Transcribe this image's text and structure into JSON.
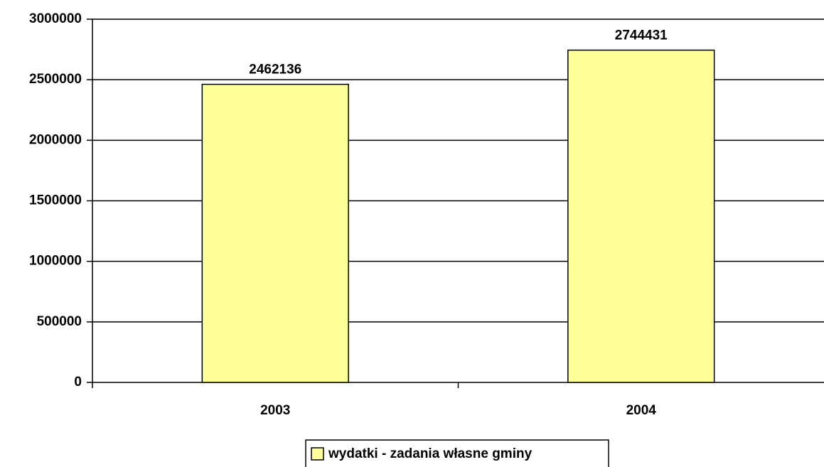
{
  "chart_data": {
    "type": "bar",
    "categories": [
      "2003",
      "2004"
    ],
    "series": [
      {
        "name": "wydatki - zadania własne gminy",
        "color": "#ffff99",
        "values": [
          2462136,
          2744431
        ]
      }
    ],
    "ylim": [
      0,
      3000000
    ],
    "yticks": [
      0,
      500000,
      1000000,
      1500000,
      2000000,
      2500000,
      3000000
    ],
    "grid": true,
    "legend": "bottom"
  }
}
